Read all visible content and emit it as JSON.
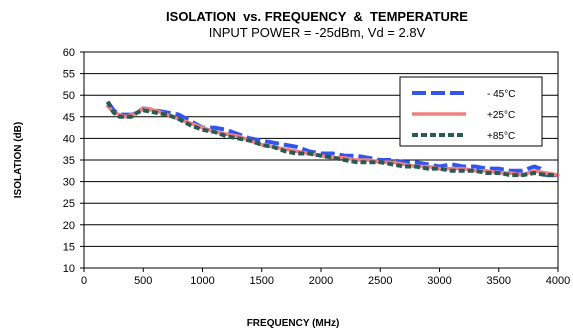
{
  "chart_data": {
    "type": "line",
    "title": "ISOLATION  vs. FREQUENCY  &  TEMPERATURE",
    "subtitle": "INPUT POWER = -25dBm, Vd = 2.8V",
    "xlabel": "FREQUENCY (MHz)",
    "ylabel": "ISOLATION (dB)",
    "xlim": [
      0,
      4000
    ],
    "ylim": [
      10,
      60
    ],
    "x_ticks": [
      0,
      500,
      1000,
      1500,
      2000,
      2500,
      3000,
      3500,
      4000
    ],
    "y_ticks": [
      10,
      15,
      20,
      25,
      30,
      35,
      40,
      45,
      50,
      55,
      60
    ],
    "grid": "horizontal",
    "legend_position": "top-right",
    "series": [
      {
        "name": "- 45°C",
        "color": "#3355ee",
        "style": "long-dash",
        "x": [
          200,
          250,
          300,
          350,
          400,
          450,
          500,
          600,
          700,
          800,
          900,
          1000,
          1100,
          1200,
          1300,
          1400,
          1500,
          1600,
          1700,
          1800,
          1900,
          2000,
          2100,
          2200,
          2300,
          2400,
          2500,
          2600,
          2700,
          2800,
          2900,
          3000,
          3100,
          3200,
          3300,
          3400,
          3500,
          3600,
          3700,
          3800,
          3850,
          3900,
          4000
        ],
        "y": [
          48.5,
          46.5,
          45.5,
          45.5,
          45.5,
          46.0,
          47.0,
          46.5,
          46.0,
          45.5,
          44.0,
          42.5,
          42.5,
          42.0,
          41.0,
          40.0,
          39.5,
          39.0,
          38.5,
          38.0,
          37.0,
          36.5,
          36.5,
          36.0,
          36.0,
          35.5,
          35.0,
          35.0,
          34.5,
          34.5,
          34.0,
          33.5,
          34.0,
          33.5,
          33.5,
          33.0,
          33.0,
          32.5,
          32.5,
          33.5,
          33.0,
          31.5,
          31.5
        ]
      },
      {
        "name": "+25°C",
        "color": "#f08080",
        "style": "solid",
        "x": [
          200,
          250,
          300,
          350,
          400,
          450,
          500,
          600,
          700,
          800,
          900,
          1000,
          1100,
          1200,
          1300,
          1400,
          1500,
          1600,
          1700,
          1800,
          1900,
          2000,
          2100,
          2200,
          2300,
          2400,
          2500,
          2600,
          2700,
          2800,
          2900,
          3000,
          3100,
          3200,
          3300,
          3400,
          3500,
          3600,
          3700,
          3800,
          3900,
          4000
        ],
        "y": [
          47.5,
          46.0,
          45.5,
          45.0,
          45.5,
          46.0,
          47.0,
          46.5,
          45.5,
          44.5,
          43.5,
          42.5,
          41.5,
          41.0,
          40.5,
          39.5,
          38.5,
          38.0,
          37.5,
          37.0,
          36.5,
          36.0,
          35.5,
          35.5,
          35.0,
          35.0,
          34.5,
          34.5,
          34.0,
          33.5,
          33.5,
          33.0,
          33.0,
          33.0,
          32.5,
          32.5,
          32.0,
          32.0,
          31.5,
          32.5,
          32.0,
          31.5
        ]
      },
      {
        "name": "+85°C",
        "color": "#2a5a52",
        "style": "short-dash",
        "x": [
          200,
          250,
          300,
          350,
          400,
          450,
          500,
          600,
          700,
          800,
          900,
          1000,
          1100,
          1200,
          1300,
          1400,
          1500,
          1600,
          1700,
          1800,
          1900,
          2000,
          2100,
          2200,
          2300,
          2400,
          2500,
          2600,
          2700,
          2800,
          2900,
          3000,
          3100,
          3200,
          3300,
          3400,
          3500,
          3600,
          3700,
          3800,
          3900,
          4000
        ],
        "y": [
          48.5,
          46.0,
          45.0,
          45.0,
          45.0,
          46.0,
          46.5,
          46.0,
          45.5,
          44.5,
          43.0,
          42.0,
          41.5,
          40.5,
          40.0,
          39.5,
          38.5,
          38.0,
          37.0,
          36.5,
          36.5,
          36.0,
          35.5,
          35.0,
          34.5,
          34.5,
          34.5,
          34.0,
          33.5,
          33.5,
          33.0,
          33.0,
          32.5,
          32.5,
          32.5,
          32.0,
          32.0,
          31.5,
          31.5,
          32.0,
          31.5,
          31.5
        ]
      }
    ]
  }
}
